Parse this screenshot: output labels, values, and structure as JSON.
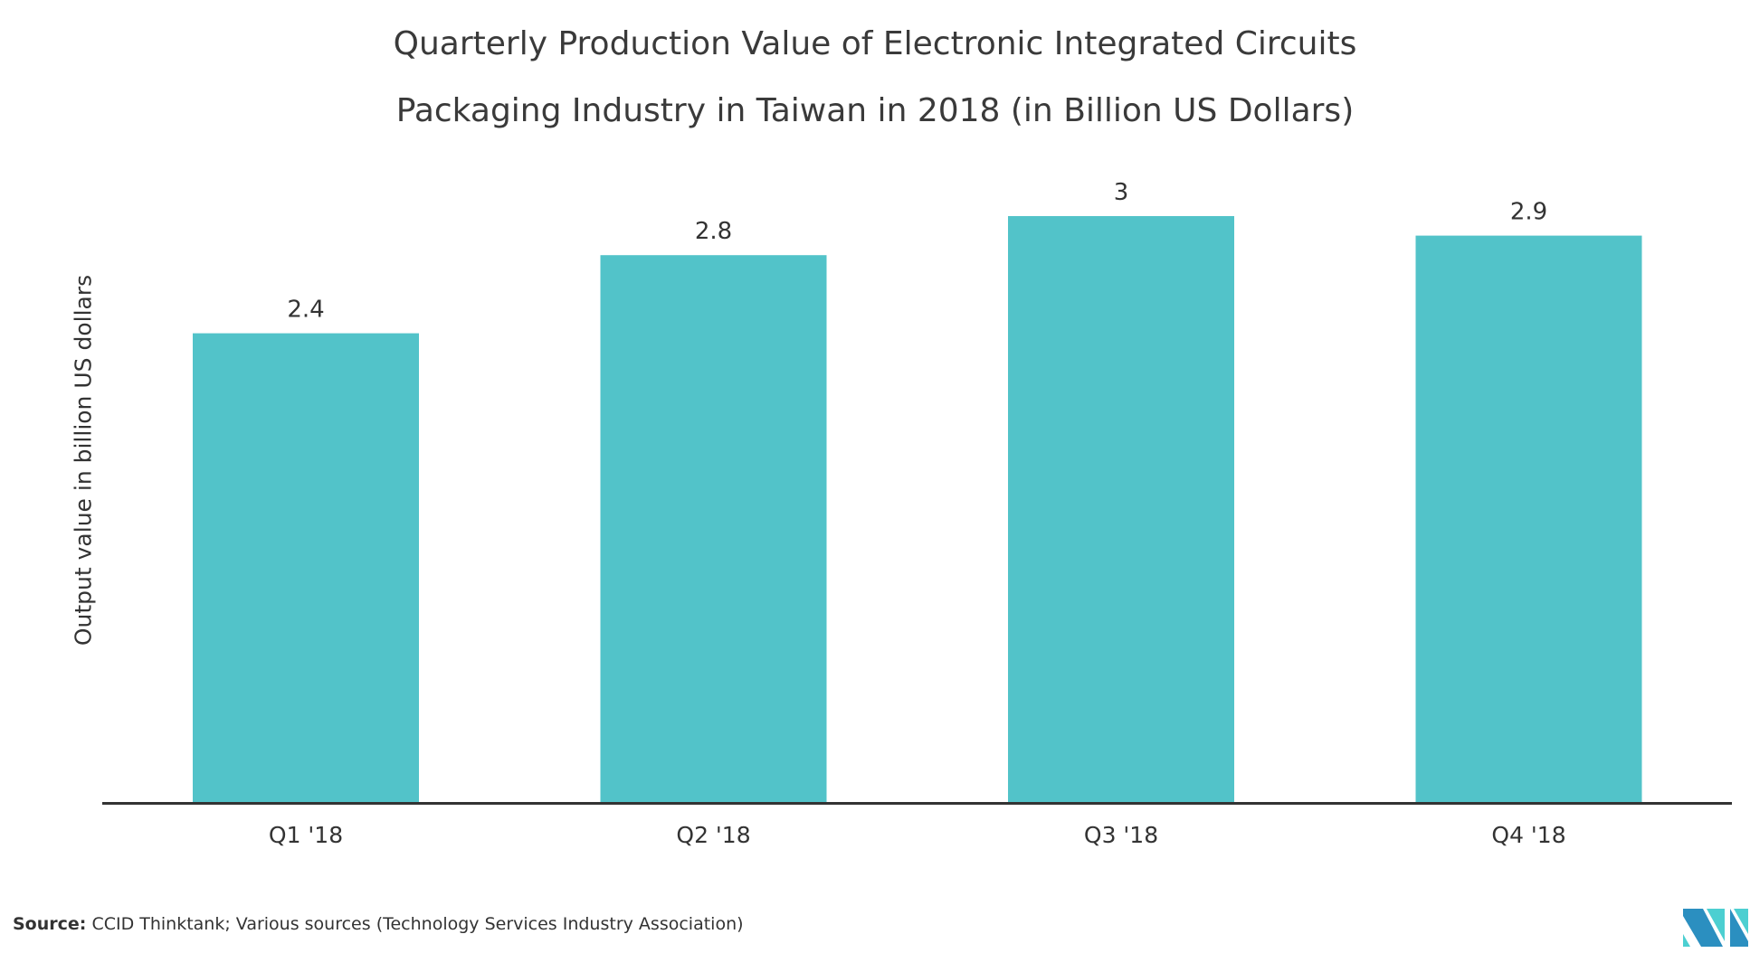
{
  "chart_data": {
    "type": "bar",
    "title": "Quarterly Production Value of Electronic Integrated Circuits Packaging Industry in Taiwan in 2018 (in Billion US Dollars)",
    "title_lines": [
      "Quarterly Production Value of Electronic Integrated Circuits",
      "Packaging Industry in Taiwan in 2018 (in Billion US Dollars)"
    ],
    "categories": [
      "Q1 '18",
      "Q2 '18",
      "Q3 '18",
      "Q4 '18"
    ],
    "values": [
      2.4,
      2.8,
      3,
      2.9
    ],
    "data_labels": [
      "2.4",
      "2.8",
      "3",
      "2.9"
    ],
    "xlabel": "",
    "ylabel": "Output value in billion US dollars",
    "ylim": [
      0,
      3
    ],
    "grid": false,
    "bar_color": "#52c3c9"
  },
  "source": {
    "label": "Source:",
    "text": "CCID Thinktank; Various sources (Technology Services Industry Association)"
  },
  "logo": {
    "name": "Mordor Intelligence logo",
    "colors": [
      "#2b8fc0",
      "#4ccfd1"
    ]
  }
}
